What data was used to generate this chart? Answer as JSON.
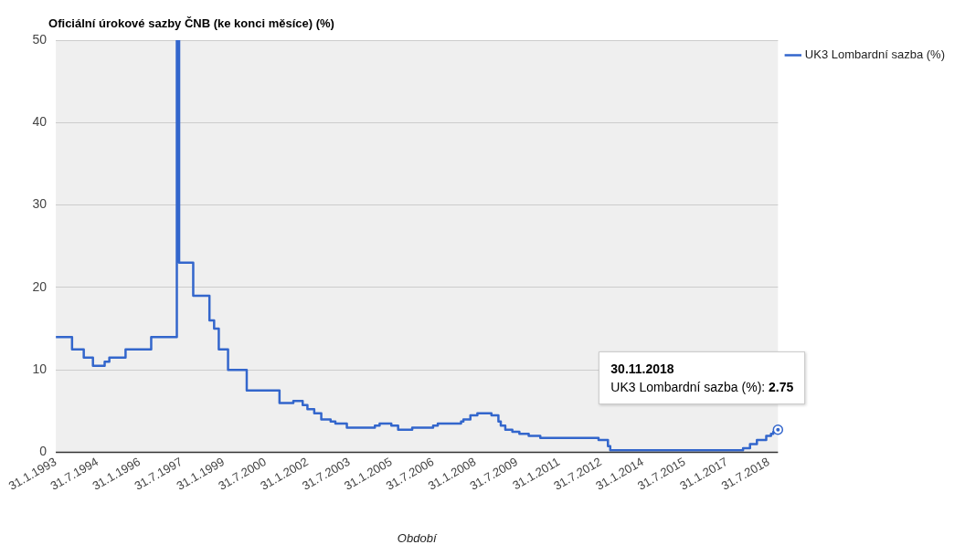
{
  "chart_data": {
    "type": "step",
    "title": "Oficiální úrokové sazby ČNB (ke konci měsíce) (%)",
    "xlabel": "Období",
    "x": [
      "1993-01-31",
      "1993-08-31",
      "1994-01-31",
      "1994-05-31",
      "1994-10-31",
      "1994-12-31",
      "1995-07-31",
      "1996-06-30",
      "1997-05-31",
      "1997-06-30",
      "1997-12-31",
      "1998-07-31",
      "1998-09-30",
      "1998-11-30",
      "1999-03-31",
      "1999-11-30",
      "2001-01-31",
      "2001-07-31",
      "2001-11-30",
      "2002-01-31",
      "2002-04-30",
      "2002-07-31",
      "2002-11-30",
      "2003-01-31",
      "2003-06-30",
      "2004-06-30",
      "2004-08-31",
      "2005-01-31",
      "2005-04-30",
      "2005-10-31",
      "2006-07-31",
      "2006-09-30",
      "2007-07-31",
      "2007-08-31",
      "2007-11-30",
      "2008-02-29",
      "2008-08-31",
      "2008-11-30",
      "2008-12-31",
      "2009-02-28",
      "2009-05-31",
      "2009-08-31",
      "2009-12-31",
      "2010-05-31",
      "2012-06-30",
      "2012-10-31",
      "2012-11-30",
      "2017-08-31",
      "2017-11-30",
      "2018-02-28",
      "2018-06-30",
      "2018-08-31",
      "2018-09-30",
      "2018-11-30"
    ],
    "series": [
      {
        "name": "UK3 Lombardní sazba (%)",
        "color": "#3366cc",
        "values": [
          14,
          12.5,
          11.5,
          10.5,
          11,
          11.5,
          12.5,
          14,
          50,
          23,
          19,
          16,
          15,
          12.5,
          10,
          7.5,
          6,
          6.25,
          5.75,
          5.25,
          4.75,
          4,
          3.75,
          3.5,
          3,
          3.25,
          3.5,
          3.25,
          2.75,
          3,
          3.25,
          3.5,
          3.75,
          4,
          4.5,
          4.75,
          4.5,
          3.75,
          3.25,
          2.75,
          2.5,
          2.25,
          2,
          1.75,
          1.5,
          0.75,
          0.25,
          0.5,
          1,
          1.5,
          2,
          2.25,
          2.5,
          2.75
        ]
      }
    ],
    "xlim": [
      "1993-01-31",
      "2018-11-30"
    ],
    "xticks": [
      {
        "value": "1993-01-31",
        "label": "31.1.1993"
      },
      {
        "value": "1994-07-31",
        "label": "31.7.1994"
      },
      {
        "value": "1996-01-31",
        "label": "31.1.1996"
      },
      {
        "value": "1997-07-31",
        "label": "31.7.1997"
      },
      {
        "value": "1999-01-31",
        "label": "31.1.1999"
      },
      {
        "value": "2000-07-31",
        "label": "31.7.2000"
      },
      {
        "value": "2002-01-31",
        "label": "31.1.2002"
      },
      {
        "value": "2003-07-31",
        "label": "31.7.2003"
      },
      {
        "value": "2005-01-31",
        "label": "31.1.2005"
      },
      {
        "value": "2006-07-31",
        "label": "31.7.2006"
      },
      {
        "value": "2008-01-31",
        "label": "31.1.2008"
      },
      {
        "value": "2009-07-31",
        "label": "31.7.2009"
      },
      {
        "value": "2011-01-31",
        "label": "31.1.2011"
      },
      {
        "value": "2012-07-31",
        "label": "31.7.2012"
      },
      {
        "value": "2014-01-31",
        "label": "31.1.2014"
      },
      {
        "value": "2015-07-31",
        "label": "31.7.2015"
      },
      {
        "value": "2017-01-31",
        "label": "31.1.2017"
      },
      {
        "value": "2018-07-31",
        "label": "31.7.2018"
      }
    ],
    "ylim": [
      0,
      50
    ],
    "yticks": [
      0,
      10,
      20,
      30,
      40,
      50
    ],
    "grid": "y",
    "legend": "top right",
    "annotations": [
      {
        "text": "30.11.2018\nUK3 Lombardní sazba (%): 2.75",
        "x": "2018-11-30",
        "y": 2.75
      }
    ]
  }
}
